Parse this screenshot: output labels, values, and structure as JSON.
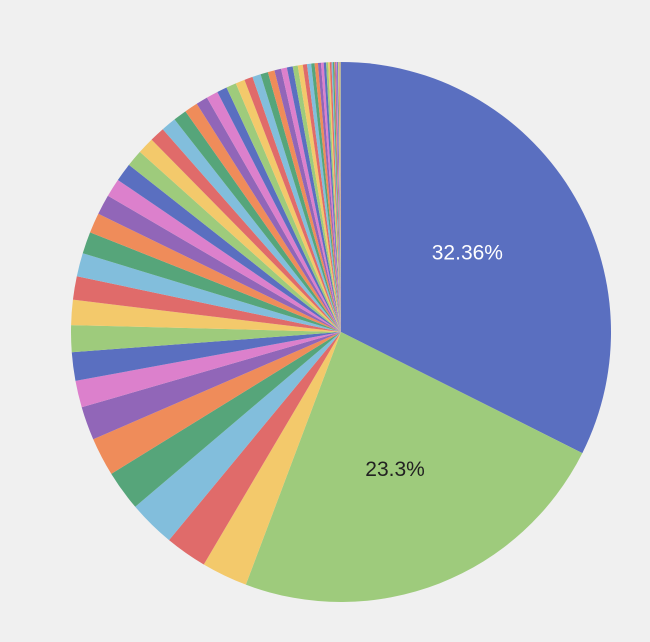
{
  "chart_data": {
    "type": "pie",
    "categories": [
      null,
      null,
      null,
      null,
      null,
      null,
      null,
      null,
      null,
      null,
      null,
      null,
      null,
      null,
      null,
      null,
      null,
      null,
      null,
      null,
      null,
      null,
      null,
      null,
      null,
      null,
      null,
      null,
      null,
      null,
      null,
      null,
      null,
      null,
      null,
      null,
      null,
      null,
      null,
      null,
      null,
      null,
      null,
      null,
      null,
      null,
      null,
      null,
      null,
      null,
      null,
      null,
      null,
      null,
      null,
      null,
      null,
      null,
      null,
      null,
      null
    ],
    "values": [
      32.36,
      23.3,
      2.75,
      2.5,
      2.8,
      2.4,
      2.3,
      2.0,
      1.6,
      1.7,
      1.6,
      1.5,
      1.4,
      1.4,
      1.3,
      1.2,
      1.2,
      1.1,
      1.1,
      1.0,
      1.0,
      0.9,
      0.9,
      0.8,
      0.8,
      0.7,
      0.7,
      0.6,
      0.6,
      0.55,
      0.5,
      0.5,
      0.45,
      0.4,
      0.4,
      0.35,
      0.35,
      0.3,
      0.3,
      0.25,
      0.25,
      0.2,
      0.2,
      0.18,
      0.16,
      0.14,
      0.12,
      0.1,
      0.1,
      0.08,
      0.08,
      0.06,
      0.06,
      0.05,
      0.05,
      0.04,
      0.04,
      0.03,
      0.03,
      0.02,
      0.02
    ],
    "value_labels": [
      "32.36%",
      "23.3%",
      null,
      null,
      null,
      null,
      null,
      null,
      null,
      null,
      null,
      null,
      null,
      null,
      null,
      null,
      null,
      null,
      null,
      null,
      null,
      null,
      null,
      null,
      null,
      null,
      null,
      null,
      null,
      null,
      null,
      null,
      null,
      null,
      null,
      null,
      null,
      null,
      null,
      null,
      null,
      null,
      null,
      null,
      null,
      null,
      null,
      null,
      null,
      null,
      null,
      null,
      null,
      null,
      null,
      null,
      null,
      null,
      null,
      null,
      null
    ],
    "colors": [
      "#5a6fc0",
      "#9ecb7c",
      "#f3c96b",
      "#e06b6a",
      "#82bedc",
      "#56a57a",
      "#ef8c5a",
      "#9166b8",
      "#dc80cc"
    ]
  }
}
